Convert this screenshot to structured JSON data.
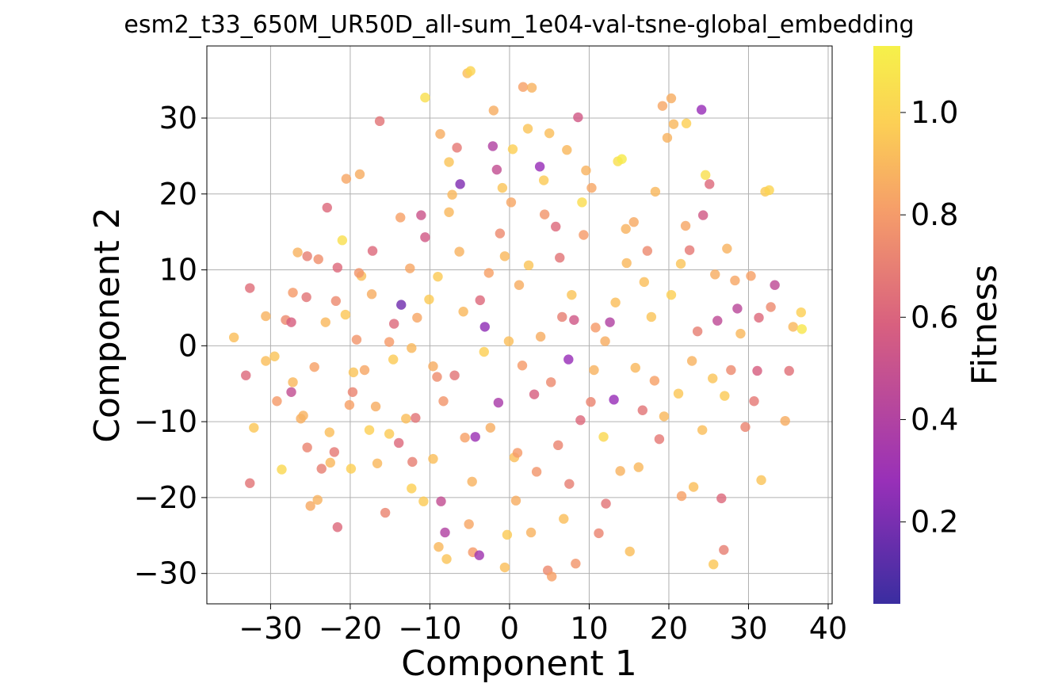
{
  "chart_data": {
    "type": "scatter",
    "title": "esm2_t33_650M_UR50D_all-sum_1e04-val-tsne-global_embedding",
    "xlabel": "Component 1",
    "ylabel": "Component 2",
    "xlim": [
      -38,
      40.5
    ],
    "ylim": [
      -34,
      39.5
    ],
    "xticks": [
      -30,
      -20,
      -10,
      0,
      10,
      20,
      30,
      40
    ],
    "yticks": [
      -30,
      -20,
      -10,
      0,
      10,
      20,
      30
    ],
    "xtick_labels": [
      "−30",
      "−20",
      "−10",
      "0",
      "10",
      "20",
      "30",
      "40"
    ],
    "ytick_labels": [
      "−30",
      "−20",
      "−10",
      "0",
      "10",
      "20",
      "30"
    ],
    "grid": true,
    "colorbar": {
      "label": "Fitness",
      "range": [
        0.04,
        1.13
      ],
      "ticks": [
        0.2,
        0.4,
        0.6,
        0.8,
        1.0
      ],
      "tick_labels": [
        "0.2",
        "0.4",
        "0.6",
        "0.8",
        "1.0"
      ],
      "colormap": "plasma",
      "colors": [
        "#3a2da0",
        "#9830b8",
        "#d8607f",
        "#f59c6a",
        "#fccf55",
        "#f6f14a"
      ]
    },
    "points": [
      [
        -34.6,
        1.1,
        0.92
      ],
      [
        -33.1,
        -3.9,
        0.62
      ],
      [
        -32.6,
        7.6,
        0.64
      ],
      [
        -32.6,
        -18.1,
        0.66
      ],
      [
        -32.1,
        -10.8,
        0.95
      ],
      [
        -30.6,
        -2.0,
        0.92
      ],
      [
        -30.6,
        3.9,
        0.88
      ],
      [
        -29.2,
        -7.3,
        0.8
      ],
      [
        -28.6,
        -16.3,
        1.02
      ],
      [
        -28.1,
        3.4,
        0.74
      ],
      [
        -27.4,
        -6.1,
        0.48
      ],
      [
        -27.4,
        3.1,
        0.58
      ],
      [
        -27.2,
        -4.8,
        0.9
      ],
      [
        -26.6,
        12.3,
        0.88
      ],
      [
        -26.2,
        -9.6,
        0.87
      ],
      [
        -25.5,
        6.4,
        0.66
      ],
      [
        -25.4,
        11.8,
        0.7
      ],
      [
        -25.4,
        -13.4,
        0.72
      ],
      [
        -25.0,
        -21.1,
        0.85
      ],
      [
        -24.5,
        -2.8,
        0.82
      ],
      [
        -24.1,
        -20.3,
        0.88
      ],
      [
        -23.6,
        -16.2,
        0.7
      ],
      [
        -23.1,
        3.1,
        0.9
      ],
      [
        -22.9,
        18.2,
        0.62
      ],
      [
        -22.6,
        -11.4,
        0.92
      ],
      [
        -22.0,
        -14.0,
        0.68
      ],
      [
        -21.6,
        10.3,
        0.62
      ],
      [
        -21.6,
        -23.9,
        0.62
      ],
      [
        -21.0,
        13.9,
        1.05
      ],
      [
        -20.6,
        4.1,
        0.95
      ],
      [
        -20.5,
        22.0,
        0.84
      ],
      [
        -20.1,
        -7.8,
        0.82
      ],
      [
        -19.9,
        -16.2,
        0.98
      ],
      [
        -19.7,
        -6.1,
        0.72
      ],
      [
        -19.2,
        0.8,
        0.78
      ],
      [
        -18.8,
        22.6,
        0.86
      ],
      [
        -18.6,
        9.2,
        0.92
      ],
      [
        -18.2,
        -3.2,
        0.84
      ],
      [
        -17.6,
        -11.1,
        0.98
      ],
      [
        -17.2,
        12.5,
        0.62
      ],
      [
        -16.6,
        -15.5,
        0.9
      ],
      [
        -16.3,
        29.6,
        0.66
      ],
      [
        -15.6,
        -22.0,
        0.72
      ],
      [
        -15.1,
        0.5,
        0.8
      ],
      [
        -14.5,
        2.9,
        0.62
      ],
      [
        -13.9,
        -12.8,
        0.62
      ],
      [
        -13.6,
        5.4,
        0.18
      ],
      [
        -13.0,
        -9.6,
        0.92
      ],
      [
        -12.3,
        -18.8,
        0.98
      ],
      [
        -12.2,
        -15.3,
        0.7
      ],
      [
        -11.8,
        -9.5,
        0.66
      ],
      [
        -11.1,
        17.2,
        0.52
      ],
      [
        -10.6,
        32.7,
        1.05
      ],
      [
        -10.6,
        14.3,
        0.55
      ],
      [
        -10.1,
        6.1,
        0.96
      ],
      [
        -9.6,
        -2.7,
        0.86
      ],
      [
        -9.1,
        -4.1,
        0.75
      ],
      [
        -8.9,
        -26.5,
        0.9
      ],
      [
        -8.6,
        -20.5,
        0.48
      ],
      [
        -8.1,
        -24.6,
        0.4
      ],
      [
        -7.6,
        24.2,
        0.94
      ],
      [
        -7.2,
        19.9,
        0.9
      ],
      [
        -6.6,
        26.1,
        0.68
      ],
      [
        -6.2,
        21.3,
        0.22
      ],
      [
        -5.6,
        -12.1,
        0.82
      ],
      [
        -5.3,
        35.9,
        0.92
      ],
      [
        -4.9,
        36.2,
        1.0
      ],
      [
        -4.6,
        -27.2,
        0.8
      ],
      [
        -4.3,
        -12.0,
        0.3
      ],
      [
        -3.8,
        -27.6,
        0.32
      ],
      [
        -3.1,
        2.5,
        0.26
      ],
      [
        -2.6,
        9.6,
        0.82
      ],
      [
        -2.1,
        26.3,
        0.4
      ],
      [
        -1.6,
        23.2,
        0.48
      ],
      [
        -1.4,
        -7.5,
        0.36
      ],
      [
        -0.6,
        11.8,
        0.9
      ],
      [
        -0.3,
        -24.9,
        0.96
      ],
      [
        0.2,
        18.9,
        0.84
      ],
      [
        0.6,
        -14.7,
        0.92
      ],
      [
        1.2,
        8.0,
        0.86
      ],
      [
        1.7,
        34.1,
        0.82
      ],
      [
        2.3,
        28.6,
        0.94
      ],
      [
        2.8,
        34.0,
        0.88
      ],
      [
        3.4,
        -16.6,
        0.78
      ],
      [
        3.8,
        23.6,
        0.28
      ],
      [
        4.3,
        21.8,
        0.96
      ],
      [
        4.8,
        -29.6,
        0.74
      ],
      [
        5.3,
        -30.4,
        0.82
      ],
      [
        5.8,
        15.7,
        0.62
      ],
      [
        6.3,
        11.6,
        0.66
      ],
      [
        6.8,
        -22.8,
        0.92
      ],
      [
        7.4,
        -1.8,
        0.28
      ],
      [
        8.1,
        3.4,
        0.54
      ],
      [
        8.6,
        30.1,
        0.55
      ],
      [
        9.1,
        18.9,
        1.04
      ],
      [
        9.6,
        23.1,
        0.88
      ],
      [
        10.2,
        -7.4,
        0.72
      ],
      [
        10.8,
        2.4,
        0.8
      ],
      [
        11.2,
        -24.7,
        0.72
      ],
      [
        12.1,
        -20.8,
        0.66
      ],
      [
        12.6,
        3.1,
        0.4
      ],
      [
        13.1,
        -7.1,
        0.28
      ],
      [
        13.6,
        24.3,
        1.05
      ],
      [
        14.1,
        24.6,
        1.1
      ],
      [
        14.6,
        15.4,
        0.88
      ],
      [
        15.1,
        -27.1,
        0.92
      ],
      [
        15.6,
        16.3,
        0.85
      ],
      [
        16.2,
        -16.0,
        0.9
      ],
      [
        16.7,
        -8.5,
        0.66
      ],
      [
        17.3,
        12.5,
        0.74
      ],
      [
        17.8,
        3.8,
        0.94
      ],
      [
        18.3,
        20.3,
        0.9
      ],
      [
        18.8,
        -12.3,
        0.68
      ],
      [
        19.2,
        31.6,
        0.84
      ],
      [
        19.8,
        27.4,
        0.88
      ],
      [
        20.3,
        32.6,
        0.86
      ],
      [
        20.6,
        29.2,
        0.9
      ],
      [
        21.2,
        -6.3,
        0.95
      ],
      [
        21.6,
        -19.8,
        0.82
      ],
      [
        22.2,
        29.3,
        0.98
      ],
      [
        22.6,
        12.6,
        0.68
      ],
      [
        23.1,
        -18.6,
        0.92
      ],
      [
        23.6,
        1.9,
        0.7
      ],
      [
        24.1,
        31.1,
        0.28
      ],
      [
        24.3,
        17.2,
        0.55
      ],
      [
        24.6,
        22.5,
        1.05
      ],
      [
        25.1,
        21.3,
        0.62
      ],
      [
        25.5,
        -4.3,
        0.94
      ],
      [
        25.6,
        -28.8,
        0.95
      ],
      [
        26.1,
        3.3,
        0.46
      ],
      [
        26.6,
        -20.1,
        0.62
      ],
      [
        26.9,
        -26.9,
        0.7
      ],
      [
        27.3,
        12.8,
        0.88
      ],
      [
        27.8,
        -3.2,
        0.74
      ],
      [
        28.3,
        8.6,
        0.84
      ],
      [
        28.6,
        4.9,
        0.44
      ],
      [
        29.6,
        -10.7,
        0.72
      ],
      [
        30.3,
        9.2,
        0.82
      ],
      [
        30.7,
        -7.3,
        0.68
      ],
      [
        31.1,
        -3.3,
        0.58
      ],
      [
        31.3,
        3.7,
        0.62
      ],
      [
        31.6,
        -17.7,
        0.94
      ],
      [
        32.1,
        20.3,
        0.96
      ],
      [
        32.6,
        20.5,
        1.0
      ],
      [
        32.8,
        5.1,
        0.74
      ],
      [
        33.3,
        8.0,
        0.46
      ],
      [
        34.6,
        -9.9,
        0.86
      ],
      [
        35.1,
        -3.3,
        0.65
      ],
      [
        35.6,
        2.5,
        0.9
      ],
      [
        36.6,
        4.4,
        0.98
      ],
      [
        36.7,
        2.2,
        1.08
      ],
      [
        -0.1,
        0.6,
        0.92
      ],
      [
        1.6,
        -2.6,
        0.8
      ],
      [
        -3.2,
        -0.8,
        0.98
      ],
      [
        3.9,
        1.2,
        0.86
      ],
      [
        5.2,
        -4.8,
        0.74
      ],
      [
        -5.8,
        4.5,
        0.9
      ],
      [
        7.8,
        6.7,
        0.94
      ],
      [
        -8.3,
        -7.3,
        0.78
      ],
      [
        10.6,
        -3.2,
        0.88
      ],
      [
        -11.6,
        3.7,
        0.84
      ],
      [
        13.3,
        5.7,
        0.92
      ],
      [
        -14.6,
        -1.8,
        0.96
      ],
      [
        15.8,
        -2.9,
        0.9
      ],
      [
        -17.3,
        6.8,
        0.86
      ],
      [
        18.2,
        -4.6,
        0.82
      ],
      [
        -19.6,
        -3.5,
        0.94
      ],
      [
        20.3,
        6.7,
        0.98
      ],
      [
        -21.8,
        5.9,
        0.74
      ],
      [
        22.9,
        -2.0,
        0.88
      ],
      [
        2.4,
        10.6,
        0.94
      ],
      [
        -2.4,
        -10.8,
        0.86
      ],
      [
        6.1,
        -13.1,
        0.72
      ],
      [
        -6.3,
        12.4,
        0.88
      ],
      [
        9.3,
        14.6,
        0.8
      ],
      [
        -9.6,
        -14.9,
        0.92
      ],
      [
        11.8,
        -12.0,
        1.02
      ],
      [
        -12.5,
        10.2,
        0.84
      ],
      [
        14.7,
        10.9,
        0.9
      ],
      [
        -15.1,
        -11.6,
        0.96
      ],
      [
        0.8,
        -20.4,
        0.86
      ],
      [
        -0.9,
        20.8,
        0.94
      ],
      [
        4.4,
        17.3,
        0.78
      ],
      [
        -4.7,
        -17.9,
        0.88
      ],
      [
        7.5,
        -18.2,
        0.7
      ],
      [
        -7.6,
        17.6,
        0.9
      ],
      [
        10.3,
        20.8,
        0.84
      ],
      [
        -10.8,
        -20.5,
        0.96
      ],
      [
        13.9,
        -16.5,
        0.88
      ],
      [
        -13.7,
        16.9,
        0.82
      ],
      [
        16.9,
        8.4,
        0.92
      ],
      [
        -16.8,
        -8.0,
        0.86
      ],
      [
        19.4,
        -9.3,
        0.9
      ],
      [
        -18.9,
        9.6,
        0.78
      ],
      [
        21.5,
        10.8,
        0.94
      ],
      [
        -3.7,
        6.0,
        0.62
      ],
      [
        3.1,
        -6.4,
        0.58
      ],
      [
        -6.9,
        -3.9,
        0.66
      ],
      [
        6.6,
        3.8,
        0.7
      ],
      [
        -1.2,
        14.8,
        0.74
      ],
      [
        1.0,
        -14.1,
        0.8
      ],
      [
        8.9,
        -9.8,
        0.62
      ],
      [
        -9.0,
        9.1,
        0.96
      ],
      [
        12.0,
        0.6,
        0.86
      ],
      [
        -12.3,
        -0.3,
        0.9
      ],
      [
        -2.0,
        31.0,
        0.86
      ],
      [
        0.4,
        25.9,
        0.98
      ],
      [
        -0.6,
        -29.2,
        0.92
      ],
      [
        2.7,
        -24.6,
        0.88
      ],
      [
        5.0,
        28.0,
        0.92
      ],
      [
        -5.1,
        -23.5,
        0.84
      ],
      [
        7.2,
        25.8,
        0.9
      ],
      [
        -7.9,
        -28.1,
        0.94
      ],
      [
        8.3,
        -28.7,
        0.78
      ],
      [
        -8.7,
        27.9,
        0.86
      ],
      [
        27.0,
        -6.6,
        0.96
      ],
      [
        -27.2,
        7.0,
        0.8
      ],
      [
        29.0,
        1.6,
        0.9
      ],
      [
        -29.5,
        -1.4,
        0.94
      ],
      [
        25.8,
        9.4,
        0.86
      ],
      [
        -25.9,
        -9.2,
        0.88
      ],
      [
        24.2,
        -11.1,
        0.92
      ],
      [
        -24.0,
        11.4,
        0.76
      ],
      [
        22.1,
        15.8,
        0.84
      ],
      [
        -22.5,
        -15.4,
        0.9
      ]
    ]
  }
}
